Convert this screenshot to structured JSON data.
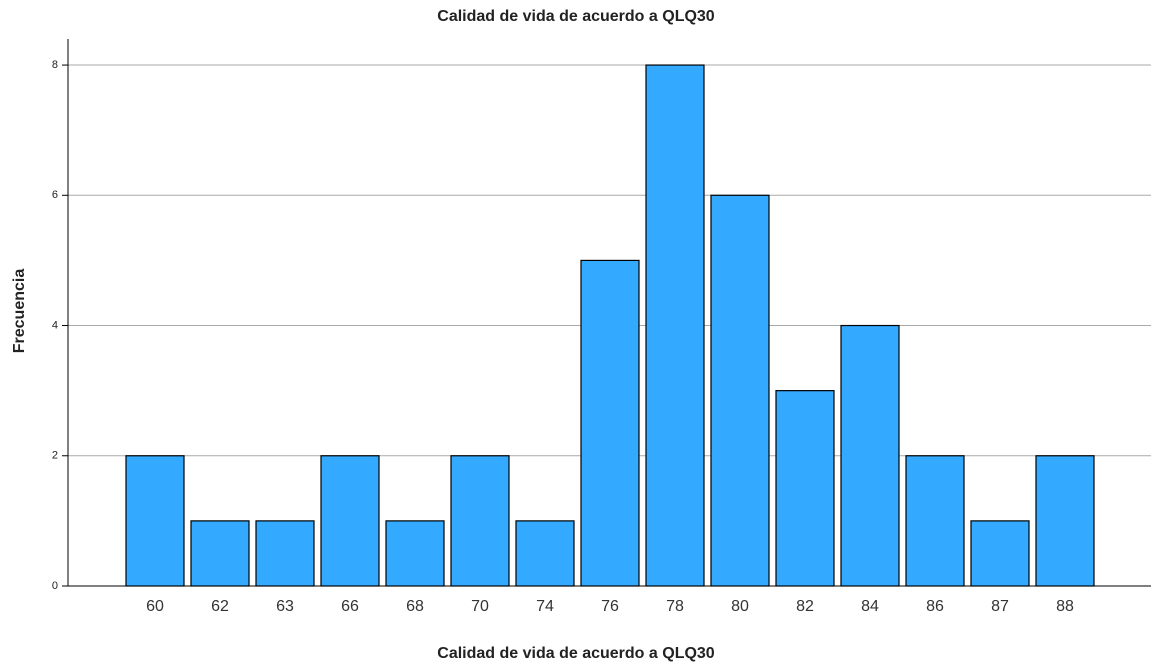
{
  "chart_data": {
    "type": "bar",
    "title": "Calidad de vida de acuerdo a QLQ30",
    "x_label": "Calidad de vida de acuerdo a QLQ30",
    "y_label": "Frecuencia",
    "categories": [
      "60",
      "62",
      "63",
      "66",
      "68",
      "70",
      "74",
      "76",
      "78",
      "80",
      "82",
      "84",
      "86",
      "87",
      "88"
    ],
    "values": [
      2,
      1,
      1,
      2,
      1,
      2,
      1,
      5,
      8,
      6,
      3,
      4,
      2,
      1,
      2
    ],
    "color": "#33aaff",
    "ylim": [
      0,
      8.4
    ],
    "yticks": [
      0,
      2,
      4,
      6,
      8
    ],
    "grid": true
  }
}
